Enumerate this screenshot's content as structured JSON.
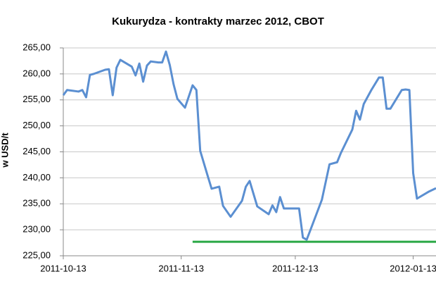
{
  "chart_data": {
    "type": "line",
    "title": "Kukurydza - kontrakty marzec 2012, CBOT",
    "y_label": "w USD/t",
    "xlim": [
      "2011-10-13",
      "2012-01-19"
    ],
    "xticks": [
      "2011-10-13",
      "2011-11-13",
      "2011-12-13",
      "2012-01-13"
    ],
    "ylim": [
      225,
      265
    ],
    "yticks": [
      {
        "value": 225,
        "label": "225,00"
      },
      {
        "value": 230,
        "label": "230,00"
      },
      {
        "value": 235,
        "label": "235,00"
      },
      {
        "value": 240,
        "label": "240,00"
      },
      {
        "value": 245,
        "label": "245,00"
      },
      {
        "value": 250,
        "label": "250,00"
      },
      {
        "value": 255,
        "label": "255,00"
      },
      {
        "value": 260,
        "label": "260,00"
      },
      {
        "value": 265,
        "label": "265,00"
      }
    ],
    "grid": true,
    "series": [
      {
        "color": "#5b8fd1",
        "x": [
          "2011-10-13",
          "2011-10-14",
          "2011-10-17",
          "2011-10-18",
          "2011-10-19",
          "2011-10-20",
          "2011-10-21",
          "2011-10-24",
          "2011-10-25",
          "2011-10-26",
          "2011-10-27",
          "2011-10-28",
          "2011-10-31",
          "2011-11-01",
          "2011-11-02",
          "2011-11-03",
          "2011-11-04",
          "2011-11-05",
          "2011-11-07",
          "2011-11-08",
          "2011-11-09",
          "2011-11-10",
          "2011-11-11",
          "2011-11-12",
          "2011-11-14",
          "2011-11-16",
          "2011-11-17",
          "2011-11-18",
          "2011-11-20",
          "2011-11-21",
          "2011-11-23",
          "2011-11-24",
          "2011-11-26",
          "2011-11-29",
          "2011-11-30",
          "2011-12-01",
          "2011-12-03",
          "2011-12-06",
          "2011-12-07",
          "2011-12-08",
          "2011-12-09",
          "2011-12-10",
          "2011-12-14",
          "2011-12-15",
          "2011-12-16",
          "2011-12-17",
          "2011-12-20",
          "2011-12-22",
          "2011-12-24",
          "2011-12-25",
          "2011-12-28",
          "2011-12-29",
          "2011-12-30",
          "2011-12-31",
          "2012-01-02",
          "2012-01-04",
          "2012-01-05",
          "2012-01-06",
          "2012-01-07",
          "2012-01-10",
          "2012-01-11",
          "2012-01-12",
          "2012-01-13",
          "2012-01-14",
          "2012-01-17",
          "2012-01-19"
        ],
        "values": [
          255.9,
          256.9,
          256.6,
          256.9,
          255.5,
          259.8,
          260.0,
          260.8,
          260.9,
          255.9,
          261.2,
          262.7,
          261.4,
          259.7,
          262.0,
          258.5,
          261.6,
          262.4,
          262.2,
          262.2,
          264.3,
          261.7,
          258.0,
          255.2,
          253.5,
          257.8,
          256.9,
          245.2,
          240.3,
          237.9,
          238.3,
          234.6,
          232.5,
          235.6,
          238.3,
          239.4,
          234.5,
          233.0,
          234.7,
          233.4,
          236.3,
          234.1,
          234.1,
          228.5,
          228.1,
          230.0,
          235.8,
          242.6,
          243.0,
          244.8,
          249.3,
          252.9,
          251.2,
          254.2,
          256.9,
          259.3,
          259.3,
          253.3,
          253.3,
          256.9,
          257.0,
          256.9,
          240.9,
          236.0,
          237.3,
          238.0
        ]
      },
      {
        "color": "#2aa845",
        "x": [
          "2011-11-16",
          "2012-01-19"
        ],
        "values": [
          227.7,
          227.7
        ]
      }
    ]
  }
}
